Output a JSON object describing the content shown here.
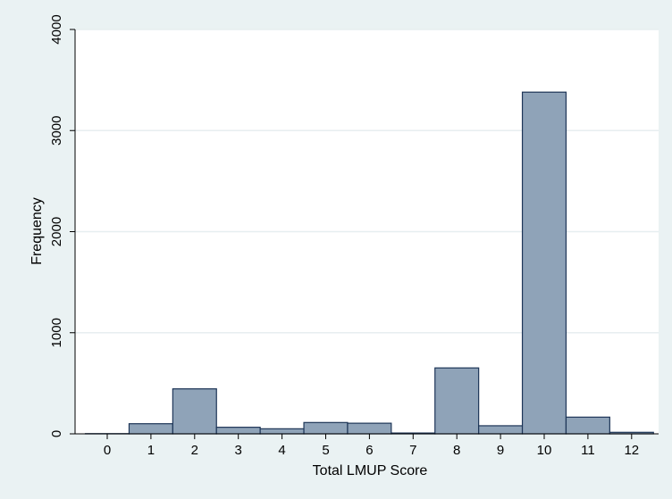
{
  "chart_data": {
    "type": "bar",
    "categories": [
      "0",
      "1",
      "2",
      "3",
      "4",
      "5",
      "6",
      "7",
      "8",
      "9",
      "10",
      "11",
      "12"
    ],
    "values": [
      2,
      100,
      445,
      65,
      50,
      112,
      105,
      8,
      652,
      80,
      3380,
      165,
      15
    ],
    "title": "",
    "xlabel": "Total LMUP Score",
    "ylabel": "Frequency",
    "ylim": [
      0,
      4000
    ],
    "yticks": [
      0,
      1000,
      2000,
      3000,
      4000
    ],
    "grid": true,
    "legend": "none",
    "colors": {
      "bar_fill": "#8fa3b8",
      "bar_stroke": "#1d3557",
      "plot_bg": "#ffffff",
      "figure_bg": "#eaf2f3",
      "grid": "#e7eef0"
    }
  }
}
